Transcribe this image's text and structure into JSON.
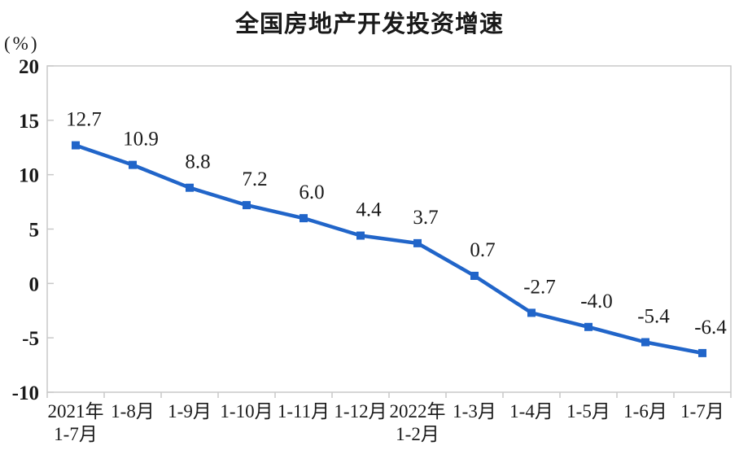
{
  "chart_data": {
    "type": "line",
    "title": "全国房地产开发投资增速",
    "unit_label": "(%)",
    "categories": [
      [
        "2021年",
        "1-7月"
      ],
      [
        "1-8月"
      ],
      [
        "1-9月"
      ],
      [
        "1-10月"
      ],
      [
        "1-11月"
      ],
      [
        "1-12月"
      ],
      [
        "2022年",
        "1-2月"
      ],
      [
        "1-3月"
      ],
      [
        "1-4月"
      ],
      [
        "1-5月"
      ],
      [
        "1-6月"
      ],
      [
        "1-7月"
      ]
    ],
    "series": [
      {
        "name": "全国房地产开发投资增速",
        "values": [
          12.7,
          10.9,
          8.8,
          7.2,
          6.0,
          4.4,
          3.7,
          0.7,
          -2.7,
          -4.0,
          -5.4,
          -6.4
        ]
      }
    ],
    "data_labels": [
      "12.7",
      "10.9",
      "8.8",
      "7.2",
      "6.0",
      "4.4",
      "3.7",
      "0.7",
      "-2.7",
      "-4.0",
      "-5.4",
      "-6.4"
    ],
    "y_ticks": [
      20,
      15,
      10,
      5,
      0,
      -5,
      -10
    ],
    "ylim": [
      -10,
      20
    ],
    "xlabel": "",
    "ylabel": "(%)",
    "grid": false,
    "legend": "none",
    "marker": "square",
    "colors": {
      "line": "#2165c9",
      "marker": "#2165c9",
      "text": "#1a1a1a",
      "axis": "#c9c9c9",
      "background": "#ffffff"
    }
  }
}
